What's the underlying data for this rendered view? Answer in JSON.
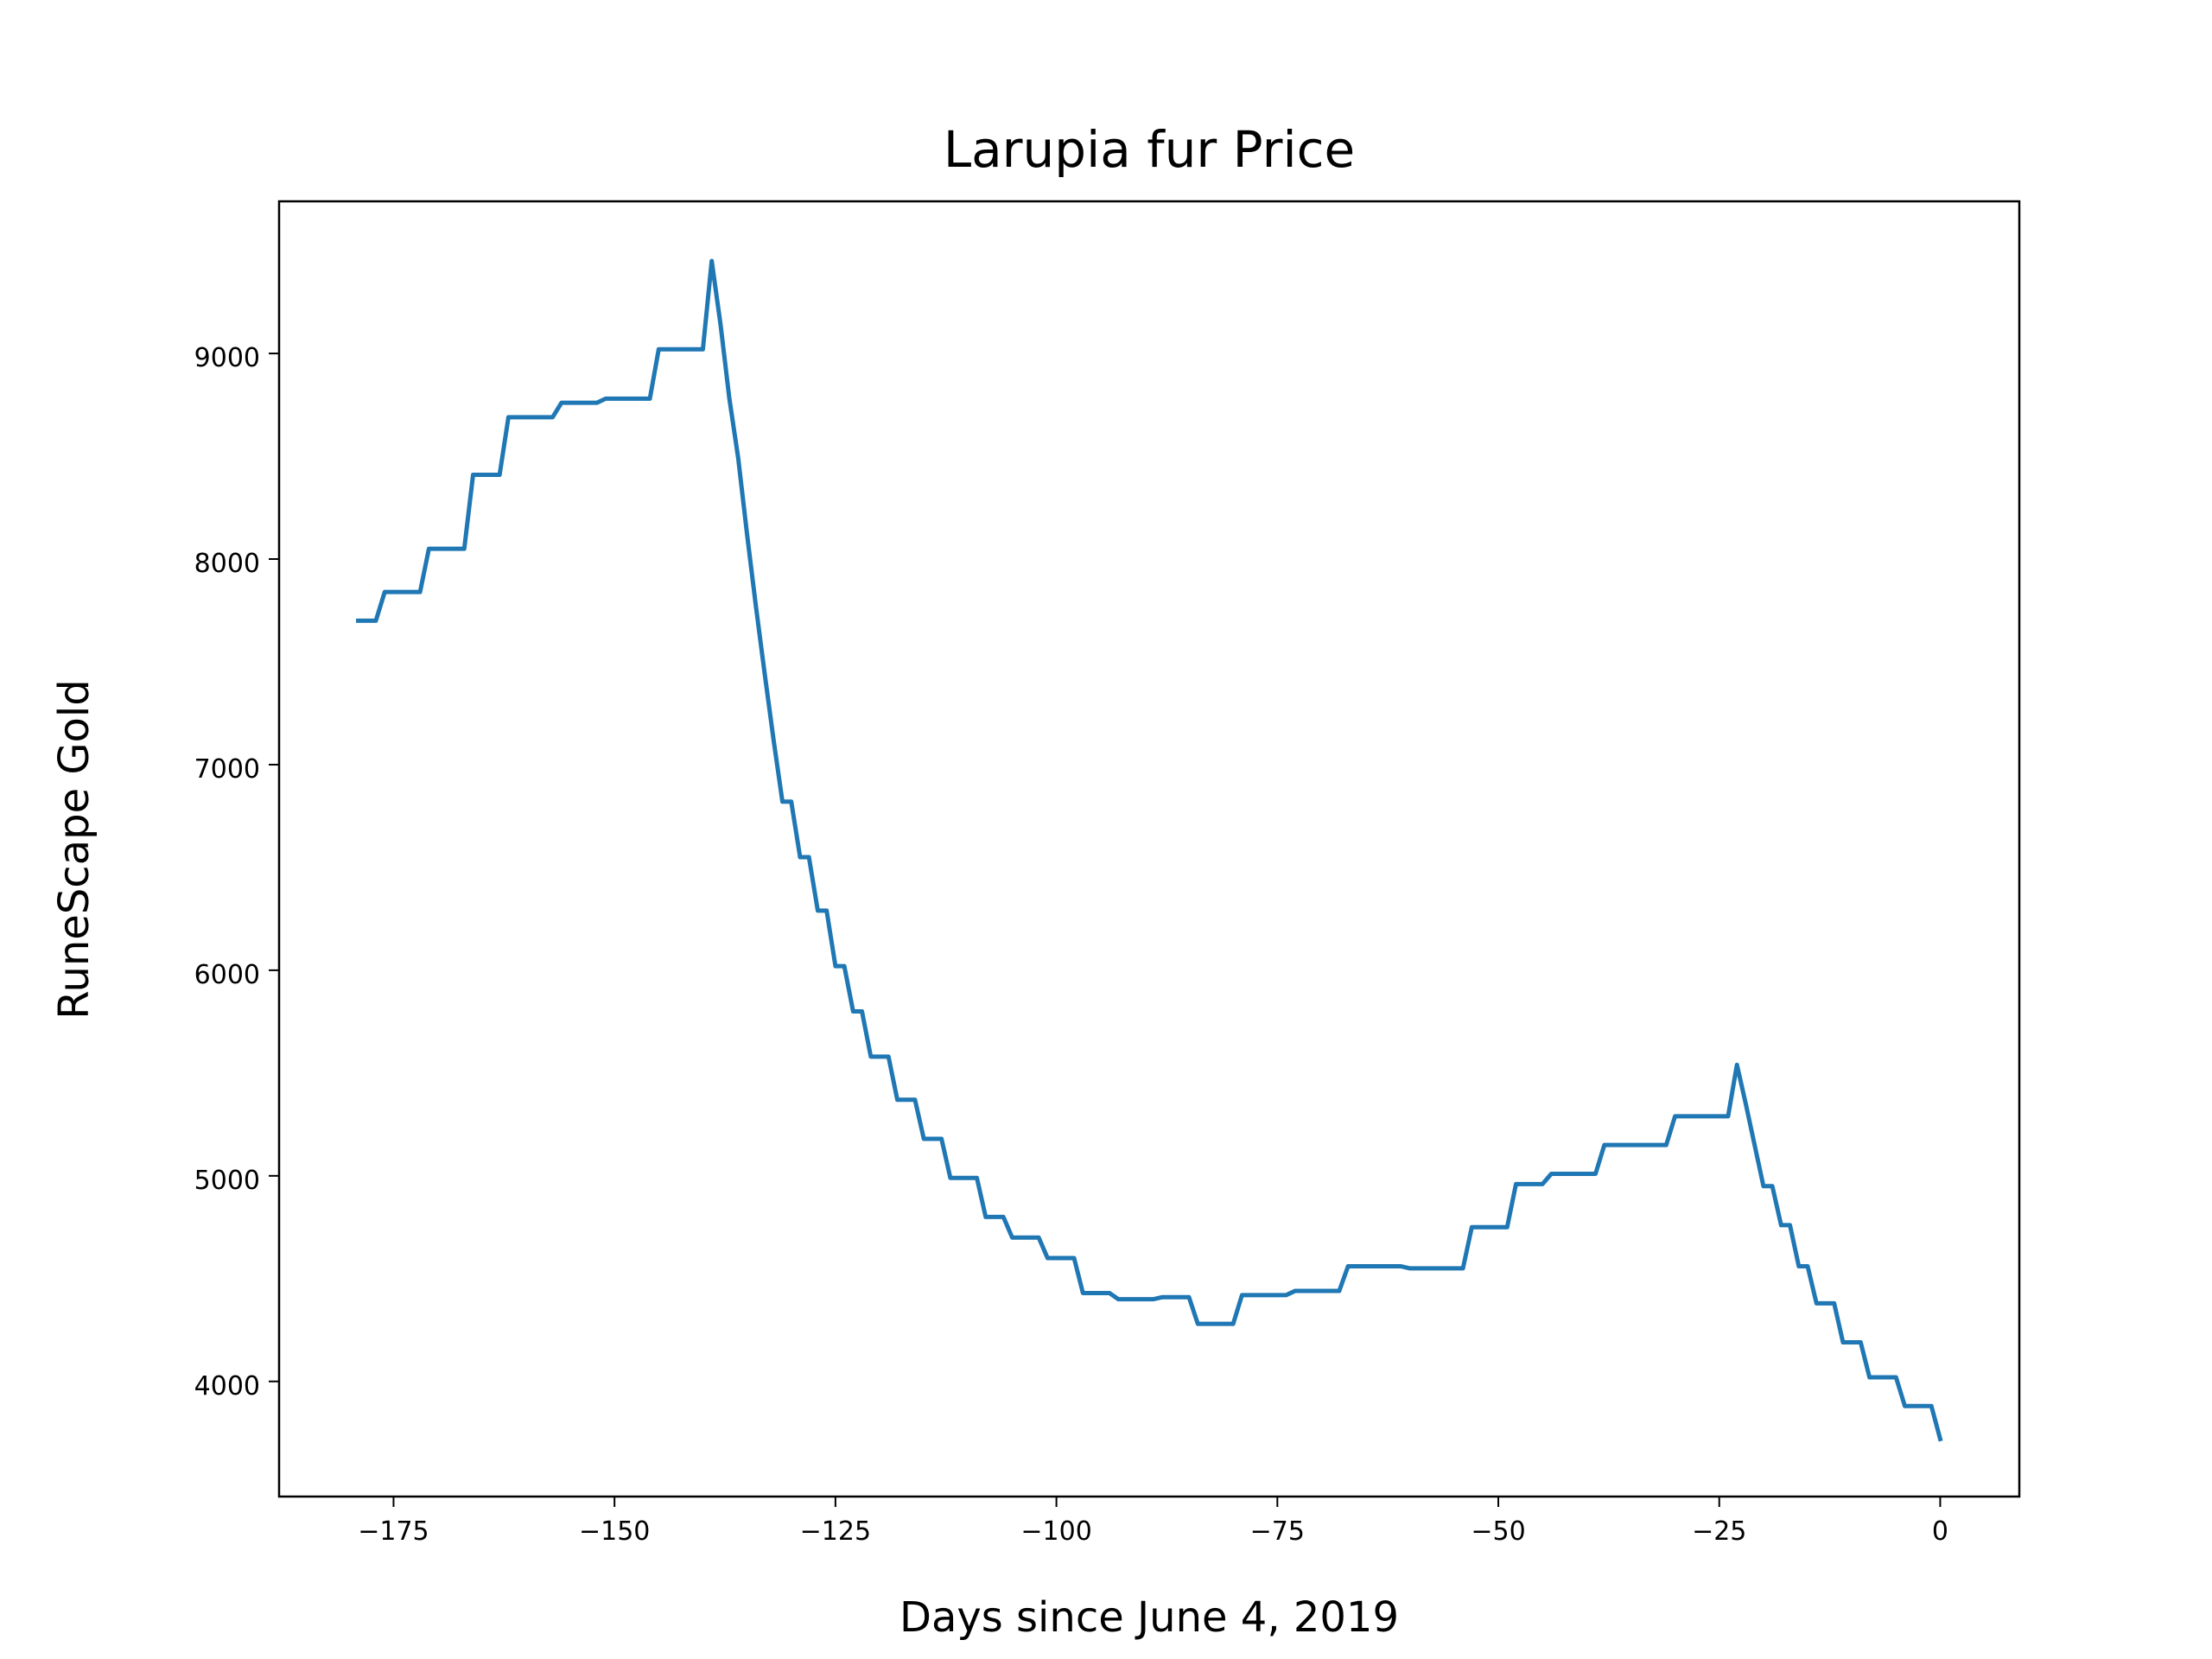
{
  "chart_data": {
    "type": "line",
    "title": "Larupia fur Price",
    "xlabel": "Days since June 4, 2019",
    "ylabel": "RuneScape Gold",
    "xlim": [
      -187.95,
      8.95
    ],
    "ylim": [
      3440,
      9740
    ],
    "xticks": [
      {
        "value": -175,
        "label": "−175"
      },
      {
        "value": -150,
        "label": "−150"
      },
      {
        "value": -125,
        "label": "−125"
      },
      {
        "value": -100,
        "label": "−100"
      },
      {
        "value": -75,
        "label": "−75"
      },
      {
        "value": -50,
        "label": "−50"
      },
      {
        "value": -25,
        "label": "−25"
      },
      0
    ],
    "yticks": [
      4000,
      5000,
      6000,
      7000,
      8000,
      9000
    ],
    "grid": false,
    "series": [
      {
        "color": "#1f77b4",
        "x": [
          -179,
          -177,
          -176,
          -172,
          -171,
          -167,
          -166,
          -163,
          -162,
          -157,
          -156,
          -152,
          -151,
          -146,
          -145,
          -140,
          -139,
          -138,
          -137,
          -136,
          -135,
          -134,
          -133,
          -132,
          -131,
          -130,
          -129,
          -128,
          -127,
          -126,
          -125,
          -124,
          -123,
          -122,
          -121,
          -119,
          -118,
          -116,
          -115,
          -113,
          -112,
          -109,
          -108,
          -106,
          -105,
          -102,
          -101,
          -98,
          -97,
          -94,
          -93,
          -89,
          -88,
          -85,
          -84,
          -80,
          -79,
          -74,
          -73,
          -68,
          -67,
          -61,
          -60,
          -54,
          -53,
          -49,
          -48,
          -45,
          -44,
          -39,
          -38,
          -31,
          -30,
          -24,
          -23,
          -22,
          -20,
          -19,
          -18,
          -17,
          -16,
          -15,
          -14,
          -12,
          -11,
          -9,
          -8,
          -5,
          -4,
          -1,
          0
        ],
        "values": [
          7700,
          7700,
          7840,
          7840,
          8050,
          8050,
          8410,
          8410,
          8690,
          8690,
          8760,
          8760,
          8780,
          8780,
          9020,
          9020,
          9450,
          9140,
          8780,
          8490,
          8120,
          7770,
          7440,
          7120,
          6820,
          6820,
          6550,
          6550,
          6290,
          6290,
          6020,
          6020,
          5800,
          5800,
          5580,
          5580,
          5370,
          5370,
          5180,
          5180,
          4990,
          4990,
          4800,
          4800,
          4700,
          4700,
          4600,
          4600,
          4430,
          4430,
          4400,
          4400,
          4410,
          4410,
          4280,
          4280,
          4420,
          4420,
          4440,
          4440,
          4560,
          4560,
          4550,
          4550,
          4750,
          4750,
          4960,
          4960,
          5010,
          5010,
          5150,
          5150,
          5290,
          5290,
          5540,
          5350,
          4950,
          4950,
          4760,
          4760,
          4560,
          4560,
          4380,
          4380,
          4190,
          4190,
          4020,
          4020,
          3880,
          3880,
          3720
        ]
      }
    ]
  }
}
